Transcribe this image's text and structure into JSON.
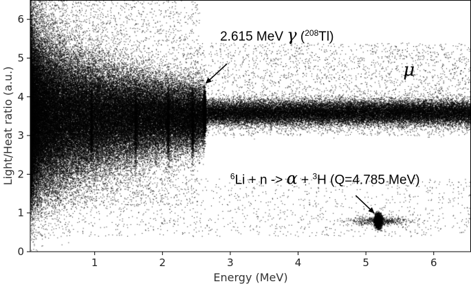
{
  "chart_data": {
    "type": "scatter",
    "title": "",
    "xlabel": "Energy (MeV)",
    "ylabel": "Light/Heat ratio (a.u.)",
    "xlim": [
      0.05,
      6.55
    ],
    "ylim": [
      0,
      6.5
    ],
    "x_ticks": [
      1,
      2,
      3,
      4,
      5,
      6
    ],
    "y_ticks": [
      0,
      1,
      2,
      3,
      4,
      5,
      6
    ],
    "x_tick_labels": [
      "1",
      "2",
      "3",
      "4",
      "5",
      "6"
    ],
    "y_tick_labels": [
      "0",
      "1",
      "2",
      "3",
      "4",
      "5",
      "6"
    ],
    "grid": false,
    "point_color": "#000000",
    "bands": [
      {
        "region": "gamma/beta band",
        "x_range": [
          0.05,
          2.615
        ],
        "y_center": 3.5,
        "y_spread_low_energy": [
          1.5,
          6.5
        ],
        "y_spread_at_2_6_MeV": [
          3.1,
          3.9
        ]
      },
      {
        "region": "muon band",
        "x_range": [
          2.6,
          6.55
        ],
        "y_center": 3.6,
        "y_spread": [
          3.2,
          4.0
        ]
      },
      {
        "region": "neutron capture peak",
        "x_center": 5.18,
        "y_center": 0.8,
        "x_spread": [
          5.1,
          5.25
        ],
        "y_spread": [
          0.6,
          1.0
        ]
      },
      {
        "region": "gamma line",
        "x_center": 2.615,
        "y_spread": [
          2.9,
          4.3
        ]
      }
    ],
    "annotations": [
      {
        "name": "tl-line",
        "parts": [
          {
            "text": "2.615 MeV ",
            "style": "normal"
          },
          {
            "text": "γ",
            "style": "italic-large"
          },
          {
            "text": " (",
            "style": "normal"
          },
          {
            "text": "208",
            "style": "sup"
          },
          {
            "text": "Tl)",
            "style": "normal"
          }
        ],
        "text_at": [
          2.85,
          5.45
        ],
        "arrow_from": [
          2.95,
          4.85
        ],
        "arrow_to": [
          2.64,
          4.35
        ]
      },
      {
        "name": "li-capture",
        "parts": [
          {
            "text": "6",
            "style": "sup"
          },
          {
            "text": "Li + n -> ",
            "style": "normal"
          },
          {
            "text": "α",
            "style": "italic-large"
          },
          {
            "text": " + ",
            "style": "normal"
          },
          {
            "text": "3",
            "style": "sup"
          },
          {
            "text": "H (Q=4.785 MeV)",
            "style": "normal"
          }
        ],
        "text_at": [
          3.0,
          1.75
        ],
        "arrow_from": [
          4.85,
          1.45
        ],
        "arrow_to": [
          5.12,
          1.0
        ]
      },
      {
        "name": "muon",
        "parts": [
          {
            "text": "μ",
            "style": "mu"
          }
        ],
        "text_at": [
          5.55,
          4.55
        ]
      }
    ]
  }
}
